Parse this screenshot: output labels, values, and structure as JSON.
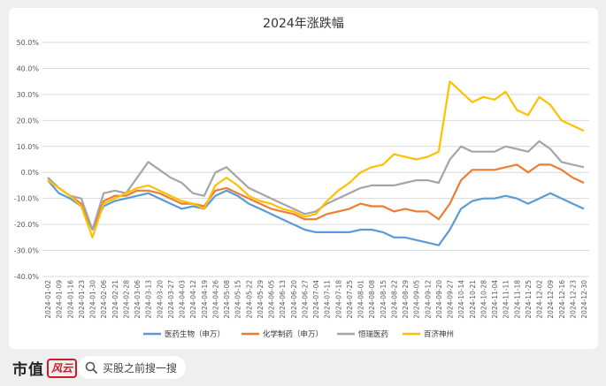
{
  "chart_data": {
    "type": "line",
    "title": "2024年涨跌幅",
    "xlabel": "",
    "ylabel": "",
    "ylim": [
      -0.4,
      0.5
    ],
    "y_ticks": [
      "50.0%",
      "40.0%",
      "30.0%",
      "20.0%",
      "10.0%",
      "0.0%",
      "-10.0%",
      "-20.0%",
      "-30.0%",
      "-40.0%"
    ],
    "grid": "horizontal",
    "legend_position": "bottom",
    "x_ticks": [
      "2024-01-02",
      "2024-01-09",
      "2024-01-16",
      "2024-01-23",
      "2024-01-30",
      "2024-02-06",
      "2024-02-21",
      "2024-02-28",
      "2024-03-06",
      "2024-03-13",
      "2024-03-20",
      "2024-03-27",
      "2024-04-03",
      "2024-04-12",
      "2024-04-19",
      "2024-04-26",
      "2024-05-08",
      "2024-05-15",
      "2024-05-22",
      "2024-05-29",
      "2024-06-05",
      "2024-06-13",
      "2024-06-20",
      "2024-06-27",
      "2024-07-04",
      "2024-07-11",
      "2024-07-18",
      "2024-07-25",
      "2024-08-01",
      "2024-08-08",
      "2024-08-15",
      "2024-08-22",
      "2024-08-29",
      "2024-09-05",
      "2024-09-12",
      "2024-09-20",
      "2024-09-27",
      "2024-10-14",
      "2024-10-21",
      "2024-10-28",
      "2024-11-04",
      "2024-11-11",
      "2024-11-18",
      "2024-11-25",
      "2024-12-02",
      "2024-12-09",
      "2024-12-16",
      "2024-12-23",
      "2024-12-30"
    ],
    "series": [
      {
        "name": "医药生物（申万）",
        "color": "#5b9bd5",
        "values": [
          -0.03,
          -0.08,
          -0.1,
          -0.13,
          -0.22,
          -0.13,
          -0.11,
          -0.1,
          -0.09,
          -0.08,
          -0.1,
          -0.12,
          -0.14,
          -0.13,
          -0.14,
          -0.09,
          -0.07,
          -0.09,
          -0.12,
          -0.14,
          -0.16,
          -0.18,
          -0.2,
          -0.22,
          -0.23,
          -0.23,
          -0.23,
          -0.23,
          -0.22,
          -0.22,
          -0.23,
          -0.25,
          -0.25,
          -0.26,
          -0.27,
          -0.28,
          -0.22,
          -0.14,
          -0.11,
          -0.1,
          -0.1,
          -0.09,
          -0.1,
          -0.12,
          -0.1,
          -0.08,
          -0.1,
          -0.12,
          -0.14
        ]
      },
      {
        "name": "化学制药（申万）",
        "color": "#ed7d31",
        "values": [
          -0.02,
          -0.06,
          -0.09,
          -0.12,
          -0.22,
          -0.11,
          -0.09,
          -0.09,
          -0.07,
          -0.07,
          -0.08,
          -0.1,
          -0.12,
          -0.12,
          -0.13,
          -0.07,
          -0.06,
          -0.08,
          -0.1,
          -0.12,
          -0.14,
          -0.15,
          -0.16,
          -0.18,
          -0.18,
          -0.16,
          -0.15,
          -0.14,
          -0.12,
          -0.13,
          -0.13,
          -0.15,
          -0.14,
          -0.15,
          -0.15,
          -0.18,
          -0.12,
          -0.03,
          0.01,
          0.01,
          0.01,
          0.02,
          0.03,
          0.0,
          0.03,
          0.03,
          0.01,
          -0.02,
          -0.04
        ]
      },
      {
        "name": "恒瑞医药",
        "color": "#a5a5a5",
        "values": [
          -0.02,
          -0.06,
          -0.09,
          -0.1,
          -0.22,
          -0.08,
          -0.07,
          -0.08,
          -0.02,
          0.04,
          0.01,
          -0.02,
          -0.04,
          -0.08,
          -0.09,
          0.0,
          0.02,
          -0.02,
          -0.06,
          -0.08,
          -0.1,
          -0.12,
          -0.14,
          -0.16,
          -0.15,
          -0.12,
          -0.1,
          -0.08,
          -0.06,
          -0.05,
          -0.05,
          -0.05,
          -0.04,
          -0.03,
          -0.03,
          -0.04,
          0.05,
          0.1,
          0.08,
          0.08,
          0.08,
          0.1,
          0.09,
          0.08,
          0.12,
          0.09,
          0.04,
          0.03,
          0.02
        ]
      },
      {
        "name": "百济神州",
        "color": "#ffc000",
        "values": [
          -0.03,
          -0.06,
          -0.09,
          -0.13,
          -0.25,
          -0.12,
          -0.1,
          -0.08,
          -0.06,
          -0.05,
          -0.07,
          -0.09,
          -0.11,
          -0.12,
          -0.14,
          -0.05,
          -0.02,
          -0.05,
          -0.09,
          -0.11,
          -0.12,
          -0.14,
          -0.15,
          -0.17,
          -0.16,
          -0.11,
          -0.07,
          -0.04,
          0.0,
          0.02,
          0.03,
          0.07,
          0.06,
          0.05,
          0.06,
          0.08,
          0.35,
          0.31,
          0.27,
          0.29,
          0.28,
          0.31,
          0.24,
          0.22,
          0.29,
          0.26,
          0.2,
          0.18,
          0.16
        ]
      }
    ]
  },
  "footer": {
    "brand": "市值",
    "brand_stamp": "风云",
    "search_icon": "search-icon",
    "search_text": "买股之前搜一搜"
  }
}
